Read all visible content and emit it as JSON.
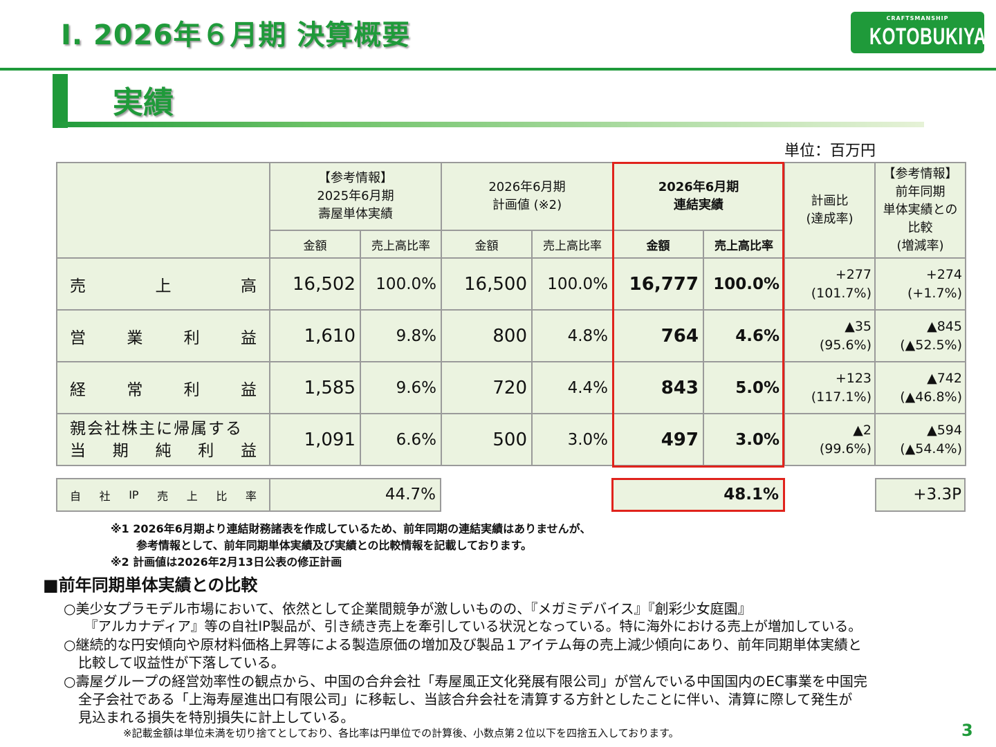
{
  "header": {
    "title": "Ⅰ. 2026年６月期 決算概要",
    "logo_small": "CRAFTSMANSHIP",
    "logo_text": "KOTOBUKIYA",
    "section_title": "実績",
    "unit": "単位：百万円"
  },
  "table": {
    "col_headers": {
      "ref2025": [
        "【参考情報】",
        "2025年6月期",
        "壽屋単体実績"
      ],
      "plan2026": [
        "2026年6月期",
        "計画値 (※2)"
      ],
      "actual2026": [
        "2026年6月期",
        "連結実績"
      ],
      "plan_ratio": [
        "計画比",
        "(達成率)"
      ],
      "yoy": [
        "【参考情報】",
        "前年同期",
        "単体実績との",
        "比較",
        "(増減率)"
      ]
    },
    "sub_headers": {
      "amount": "金額",
      "ratio": "売上高比率"
    },
    "rows": [
      {
        "label": [
          "売",
          "上",
          "高"
        ],
        "ref_amt": "16,502",
        "ref_pct": "100.0%",
        "plan_amt": "16,500",
        "plan_pct": "100.0%",
        "act_amt": "16,777",
        "act_pct": "100.0%",
        "vs_plan": "+277",
        "vs_plan_rate": "(101.7%)",
        "vs_yoy": "+274",
        "vs_yoy_rate": "(+1.7%)"
      },
      {
        "label": [
          "営",
          "業",
          "利",
          "益"
        ],
        "ref_amt": "1,610",
        "ref_pct": "9.8%",
        "plan_amt": "800",
        "plan_pct": "4.8%",
        "act_amt": "764",
        "act_pct": "4.6%",
        "vs_plan": "▲35",
        "vs_plan_rate": "(95.6%)",
        "vs_yoy": "▲845",
        "vs_yoy_rate": "(▲52.5%)"
      },
      {
        "label": [
          "経",
          "常",
          "利",
          "益"
        ],
        "ref_amt": "1,585",
        "ref_pct": "9.6%",
        "plan_amt": "720",
        "plan_pct": "4.4%",
        "act_amt": "843",
        "act_pct": "5.0%",
        "vs_plan": "+123",
        "vs_plan_rate": "(117.1%)",
        "vs_yoy": "▲742",
        "vs_yoy_rate": "(▲46.8%)"
      },
      {
        "label_line1": "親会社株主に帰属する",
        "label_line2": [
          "当",
          "期",
          "純",
          "利",
          "益"
        ],
        "ref_amt": "1,091",
        "ref_pct": "6.6%",
        "plan_amt": "500",
        "plan_pct": "3.0%",
        "act_amt": "497",
        "act_pct": "3.0%",
        "vs_plan": "▲2",
        "vs_plan_rate": "(99.6%)",
        "vs_yoy": "▲594",
        "vs_yoy_rate": "(▲54.4%)"
      }
    ],
    "ip_row": {
      "label": [
        "自",
        "社",
        "IP",
        "売",
        "上",
        "比",
        "率"
      ],
      "ref": "44.7%",
      "actual": "48.1%",
      "diff": "+3.3P"
    }
  },
  "notes": {
    "note1_line1": "※1 2026年6月期より連結財務諸表を作成しているため、前年同期の連結実績はありませんが、",
    "note1_line2": "参考情報として、前年同期単体実績及び実績との比較情報を記載しております。",
    "note2": "※2 計画値は2026年2月13日公表の修正計画"
  },
  "comparison": {
    "heading": "■前年同期単体実績との比較",
    "lines": [
      "○美少女プラモデル市場において、依然として企業間競争が激しいものの、『メガミデバイス』『創彩少女庭園』",
      "『アルカナディア』等の自社IP製品が、引き続き売上を牽引している状況となっている。特に海外における売上が増加している。",
      "○継続的な円安傾向や原材料価格上昇等による製造原価の増加及び製品１アイテム毎の売上減少傾向にあり、前年同期単体実績と",
      "比較して収益性が下落している。",
      "○壽屋グループの経営効率性の観点から、中国の合弁会社「寿屋風正文化発展有限公司」が営んでいる中国国内のEC事業を中国完",
      "全子会社である「上海寿屋進出口有限公司」に移転し、当該合弁会社を清算する方針としたことに伴い、清算に際して発生が",
      "見込まれる損失を特別損失に計上している。"
    ]
  },
  "footnote": "※記載金額は単位未満を切り捨てとしており、各比率は円単位での計算後、小数点第２位以下を四捨五入しております。",
  "page_number": "3"
}
